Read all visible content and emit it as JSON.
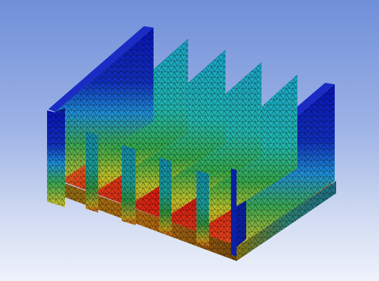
{
  "viewport": {
    "background_top": "#6f8fd8",
    "background_bottom": "#eef2fb",
    "object": "heat-sink-mesh",
    "view": "isometric"
  },
  "colormap": {
    "cold": "#0a14b8",
    "cool": "#1f8fd6",
    "mild": "#22b6b0",
    "warm": "#4fc24a",
    "hot": "#d7c12a",
    "hotter": "#e08a1e",
    "hottest": "#d2150e"
  }
}
